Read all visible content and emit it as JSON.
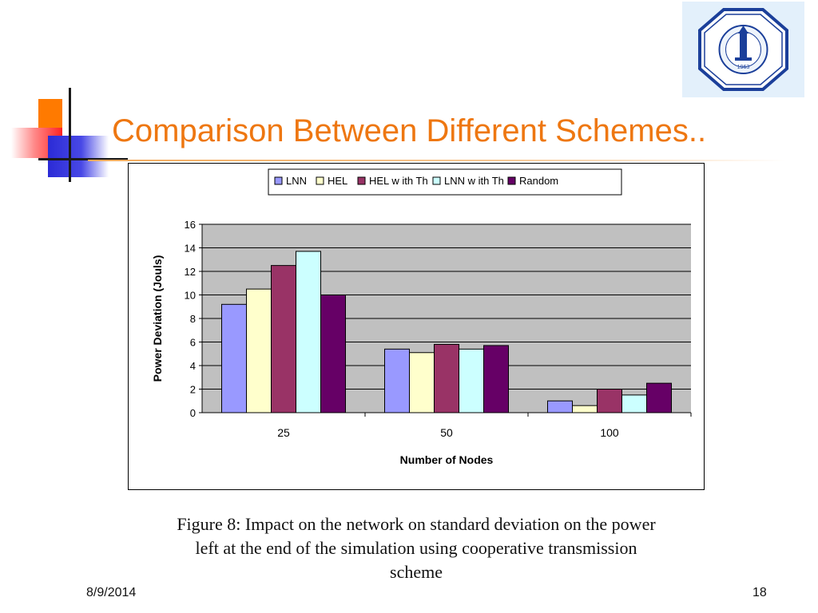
{
  "slide": {
    "title": "Comparison Between Different Schemes..",
    "caption_lines": [
      "Figure 8: Impact on the network on standard deviation on the power",
      "left at the end of the simulation using cooperative transmission",
      "scheme"
    ],
    "footer_date": "8/9/2014",
    "page_number": "18",
    "logo": {
      "year_text": "1963",
      "icon": "university-seal"
    }
  },
  "colors": {
    "title": "#ee7711",
    "plot_background": "#c0c0c0",
    "LNN": "#9999ff",
    "HEL": "#ffffcc",
    "HEL with Th": "#993366",
    "LNN with Th": "#ccffff",
    "Random": "#660066"
  },
  "chart_data": {
    "type": "bar",
    "categories": [
      "25",
      "50",
      "100"
    ],
    "series": [
      {
        "name": "LNN",
        "values": [
          9.2,
          5.4,
          1.0
        ]
      },
      {
        "name": "HEL",
        "values": [
          10.5,
          5.1,
          0.6
        ]
      },
      {
        "name": "HEL with Th",
        "values": [
          12.5,
          5.8,
          2.0
        ]
      },
      {
        "name": "LNN with Th",
        "values": [
          13.7,
          5.4,
          1.5
        ]
      },
      {
        "name": "Random",
        "values": [
          10.0,
          5.7,
          2.5
        ]
      }
    ],
    "legend_labels": [
      "LNN",
      "HEL",
      "HEL w ith Th",
      "LNN w ith Th",
      "Random"
    ],
    "xlabel": "Number of Nodes",
    "ylabel": "Power Deviation (Jouls)",
    "ylim": [
      0,
      16
    ],
    "yticks": [
      0,
      2,
      4,
      6,
      8,
      10,
      12,
      14,
      16
    ],
    "grid": true,
    "legend_position": "top"
  }
}
